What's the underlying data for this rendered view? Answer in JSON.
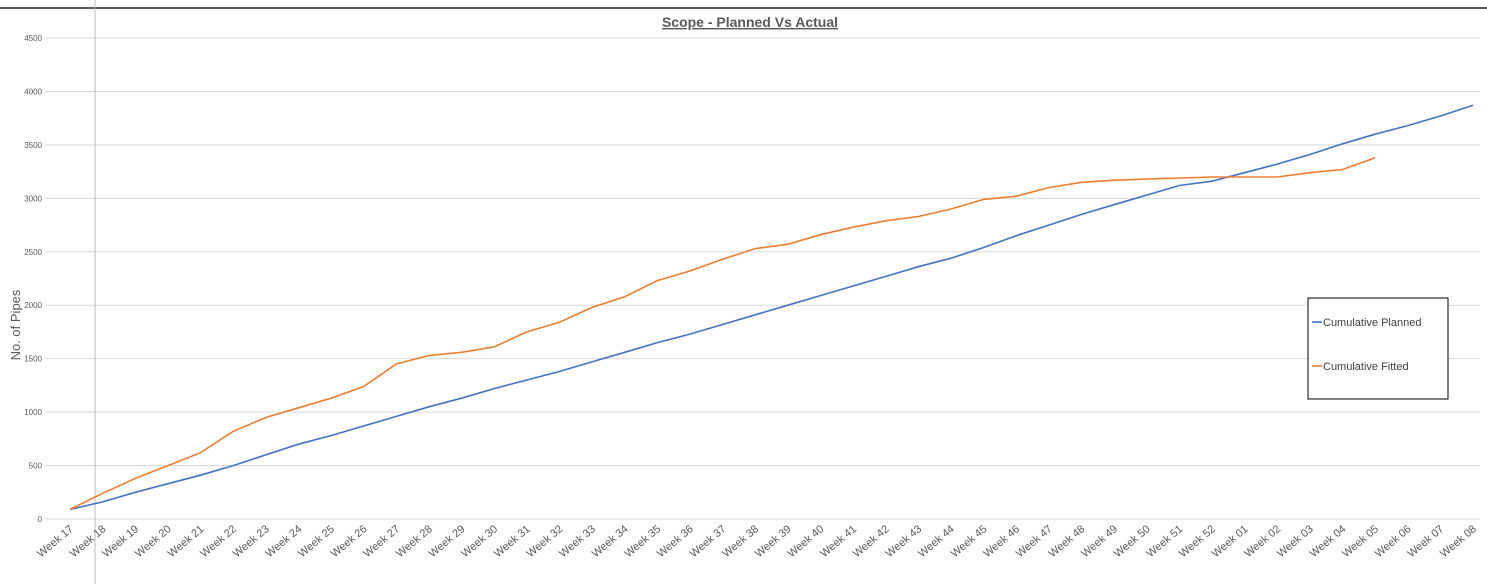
{
  "chart_data": {
    "type": "line",
    "title": "Scope - Planned Vs Actual",
    "y_label": "No. of Pipes",
    "categories": [
      "Week 17",
      "Week 18",
      "Week 19",
      "Week 20",
      "Week 21",
      "Week 22",
      "Week 23",
      "Week 24",
      "Week 25",
      "Week 26",
      "Week 27",
      "Week 28",
      "Week 29",
      "Week 30",
      "Week 31",
      "Week 32",
      "Week 33",
      "Week 34",
      "Week 35",
      "Week 36",
      "Week 37",
      "Week 38",
      "Week 39",
      "Week 40",
      "Week 41",
      "Week 42",
      "Week 43",
      "Week 44",
      "Week 45",
      "Week 46",
      "Week 47",
      "Week 48",
      "Week 49",
      "Week 50",
      "Week 51",
      "Week 52",
      "Week 01",
      "Week 02",
      "Week 03",
      "Week 04",
      "Week 05",
      "Week 06",
      "Week 07",
      "Week 08"
    ],
    "series": [
      {
        "name": "Cumulative Planned",
        "color": "#4472c4",
        "values": [
          90,
          160,
          250,
          330,
          410,
          500,
          600,
          700,
          780,
          870,
          960,
          1050,
          1130,
          1220,
          1300,
          1380,
          1470,
          1560,
          1650,
          1730,
          1820,
          1910,
          2000,
          2090,
          2180,
          2270,
          2360,
          2440,
          2540,
          2650,
          2750,
          2850,
          2940,
          3030,
          3120,
          3160,
          3240,
          3320,
          3410,
          3510,
          3600,
          3680,
          3770,
          3870
        ]
      },
      {
        "name": "Cumulative Fitted",
        "color": "#ed7d31",
        "values": [
          90,
          240,
          380,
          500,
          620,
          820,
          950,
          1040,
          1130,
          1240,
          1450,
          1530,
          1560,
          1610,
          1750,
          1840,
          1980,
          2080,
          2230,
          2320,
          2430,
          2530,
          2570,
          2660,
          2730,
          2790,
          2830,
          2900,
          2990,
          3020,
          3100,
          3150,
          3170,
          3180,
          3190,
          3200,
          3200,
          3200,
          3240,
          3270,
          3380,
          null,
          null,
          null
        ]
      }
    ],
    "ylim": [
      0,
      4500
    ],
    "yticks": [
      0,
      500,
      1000,
      1500,
      2000,
      2500,
      3000,
      3500,
      4000,
      4500
    ],
    "grid": true,
    "legend": "right"
  }
}
